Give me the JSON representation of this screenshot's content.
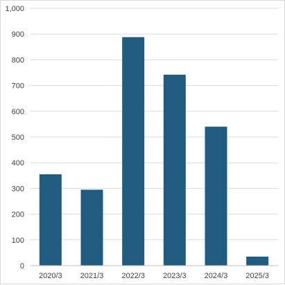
{
  "chart_data": {
    "type": "bar",
    "title": "",
    "xlabel": "",
    "ylabel": "",
    "categories": [
      "2020/3",
      "2021/3",
      "2022/3",
      "2023/3",
      "2024/3",
      "2025/3"
    ],
    "values": [
      355,
      295,
      888,
      742,
      540,
      35
    ],
    "ylim": [
      0,
      1000
    ],
    "yticks": [
      0,
      100,
      200,
      300,
      400,
      500,
      600,
      700,
      800,
      900,
      1000
    ],
    "ytick_labels": [
      "0",
      "100",
      "200",
      "300",
      "400",
      "500",
      "600",
      "700",
      "800",
      "900",
      "1,000"
    ],
    "grid": true,
    "legend": "none",
    "bar_color": "#1f5c80",
    "grid_color": "#d9d9d9"
  }
}
